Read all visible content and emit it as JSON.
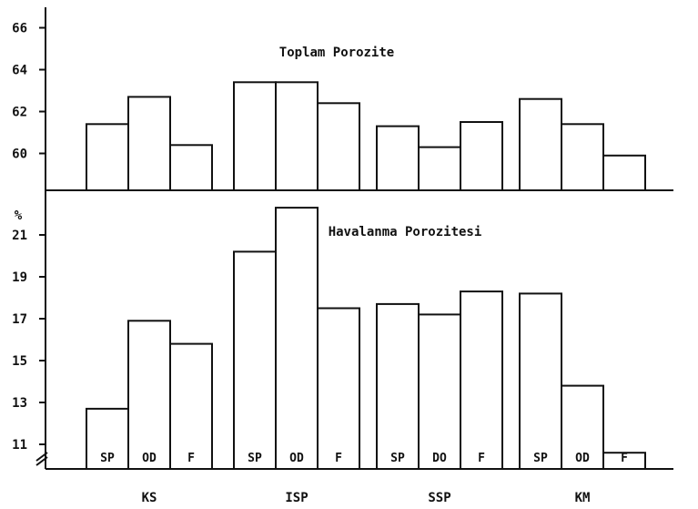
{
  "chart_data": [
    {
      "type": "bar",
      "title": "Toplam Porozite",
      "ylabel": "",
      "ylim": [
        58,
        67
      ],
      "yticks": [
        60,
        62,
        64,
        66
      ],
      "groups": [
        "KS",
        "ISP",
        "SSP",
        "KM"
      ],
      "values": [
        [
          61.4,
          62.7,
          60.4
        ],
        [
          63.4,
          63.4,
          62.4
        ],
        [
          61.3,
          60.3,
          61.5
        ],
        [
          62.6,
          61.4,
          59.9
        ]
      ]
    },
    {
      "type": "bar",
      "title": "Havalanma Porozitesi",
      "ylabel": "%",
      "ylim": [
        10,
        22.5
      ],
      "yticks": [
        11,
        13,
        15,
        17,
        19,
        21
      ],
      "groups": [
        "KS",
        "ISP",
        "SSP",
        "KM"
      ],
      "bar_labels": [
        [
          "SP",
          "OD",
          "F"
        ],
        [
          "SP",
          "OD",
          "F"
        ],
        [
          "SP",
          "DO",
          "F"
        ],
        [
          "SP",
          "OD",
          "F"
        ]
      ],
      "values": [
        [
          12.7,
          16.9,
          15.8
        ],
        [
          20.2,
          22.3,
          17.5
        ],
        [
          17.7,
          17.2,
          18.3
        ],
        [
          18.2,
          13.8,
          10.6
        ]
      ]
    }
  ]
}
